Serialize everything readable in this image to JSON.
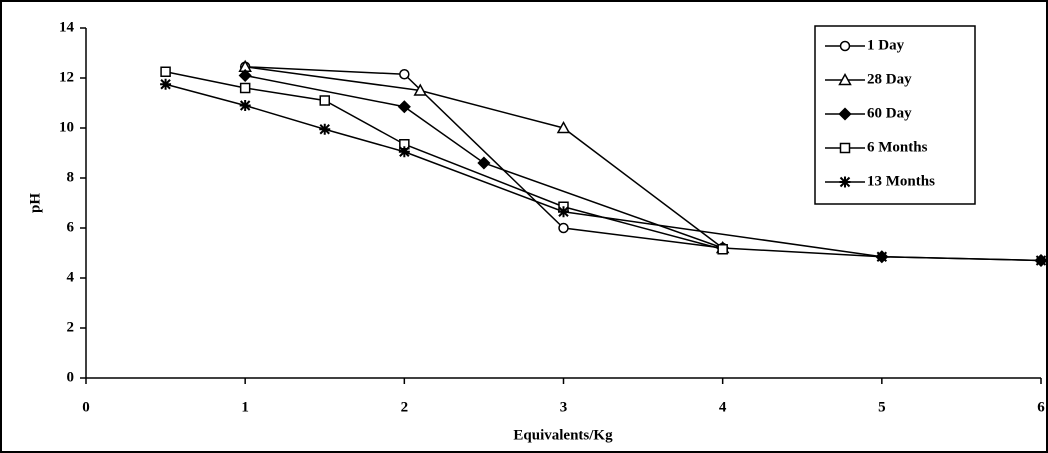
{
  "chart_data": {
    "type": "line",
    "x_label": "Equivalents/Kg",
    "y_label": "pH",
    "xlim": [
      0,
      6
    ],
    "xticks": [
      0,
      1,
      2,
      3,
      4,
      5,
      6
    ],
    "ylim": [
      0,
      14
    ],
    "yticks": [
      0,
      2,
      4,
      6,
      8,
      10,
      12,
      14
    ],
    "legend": "top-right",
    "color": "#000000",
    "series": [
      {
        "name": "1 Day",
        "marker": "circle",
        "x": [
          1,
          2,
          3,
          4
        ],
        "values": [
          12.45,
          12.15,
          6.0,
          5.2
        ]
      },
      {
        "name": "28 Day",
        "marker": "triangle",
        "x": [
          1,
          2.1,
          3,
          4
        ],
        "values": [
          12.45,
          11.5,
          10.0,
          5.2
        ]
      },
      {
        "name": "60 Day",
        "marker": "diamond",
        "x": [
          1,
          2,
          2.5,
          4,
          5,
          6
        ],
        "values": [
          12.1,
          10.85,
          8.6,
          5.2,
          4.85,
          4.7
        ]
      },
      {
        "name": "6 Months",
        "marker": "square",
        "x": [
          0.5,
          1,
          1.5,
          2,
          3,
          4
        ],
        "values": [
          12.25,
          11.6,
          11.1,
          9.35,
          6.85,
          5.15
        ]
      },
      {
        "name": "13 Months",
        "marker": "star",
        "x": [
          0.5,
          1,
          1.5,
          2,
          3,
          5,
          6
        ],
        "values": [
          11.75,
          10.9,
          9.95,
          9.05,
          6.65,
          4.85,
          4.7
        ]
      }
    ]
  }
}
